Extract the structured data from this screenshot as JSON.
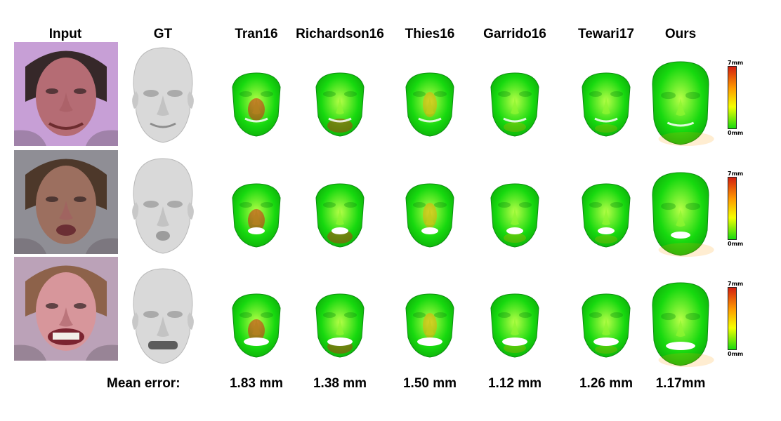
{
  "headers": [
    "Input",
    "GT",
    "Tran16",
    "Richardson16",
    "Thies16",
    "Garrido16",
    "Tewari17",
    "Ours"
  ],
  "footer": {
    "label": "Mean error:",
    "values": [
      "1.83 mm",
      "1.38 mm",
      "1.50 mm",
      "1.12 mm",
      "1.26 mm",
      "1.17mm"
    ]
  },
  "scale": {
    "top": "7mm",
    "bottom": "0mm"
  },
  "rows": [
    {
      "subject": "row-1",
      "skin": "#b56c74",
      "background": "#c79fd6",
      "hair": "#2e2220",
      "mouth": "smile"
    },
    {
      "subject": "row-2",
      "skin": "#9c6f5f",
      "background": "#8f8e95",
      "hair": "#4a3424",
      "mouth": "open"
    },
    {
      "subject": "row-3",
      "skin": "#d7969b",
      "background": "#bba2b8",
      "hair": "#8a5f43",
      "mouth": "teeth"
    }
  ],
  "colors": {
    "gt_face": "#d9d9d9",
    "error_low": "#17d90f",
    "error_mid": "#f4ff00",
    "error_high": "#d31f10"
  }
}
